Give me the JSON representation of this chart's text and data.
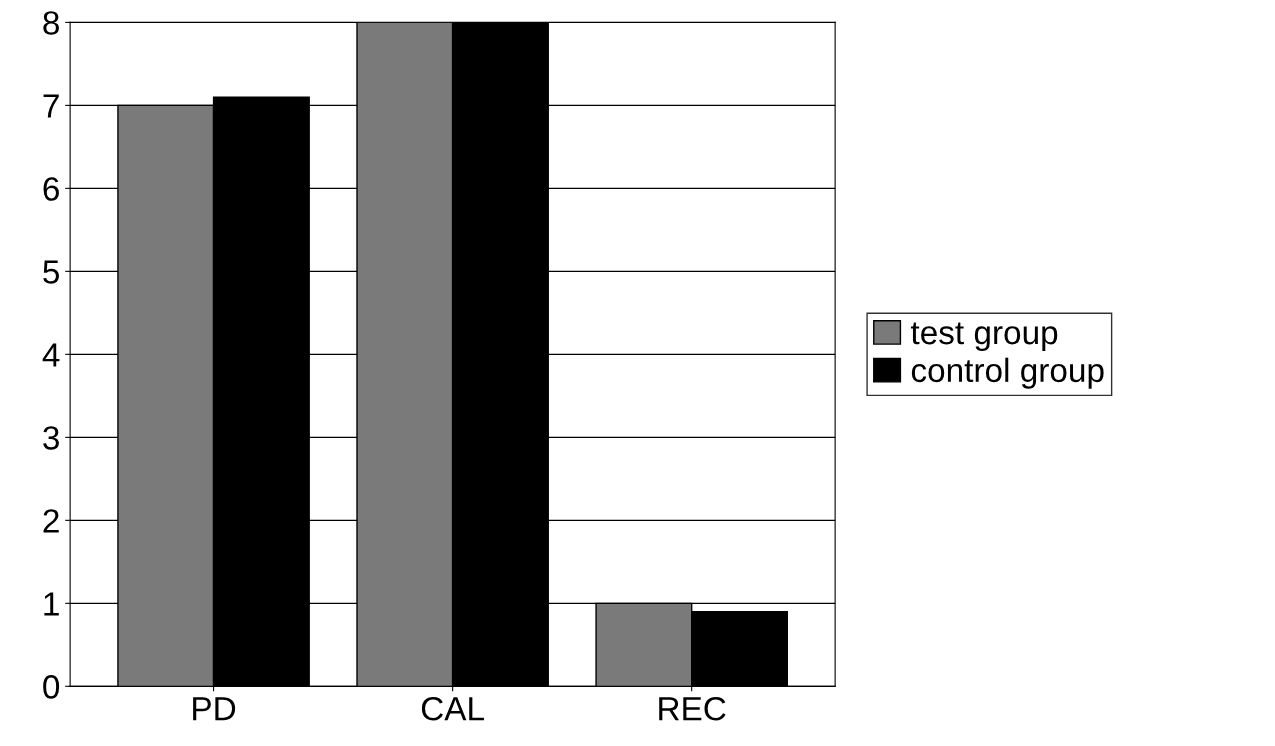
{
  "chart_data": {
    "type": "bar",
    "categories": [
      "PD",
      "CAL",
      "REC"
    ],
    "series": [
      {
        "name": "test group",
        "color": "#7a7a7a",
        "values": [
          7.0,
          8.0,
          1.0
        ]
      },
      {
        "name": "control group",
        "color": "#000000",
        "values": [
          7.1,
          8.0,
          0.9
        ]
      }
    ],
    "ylim": [
      0,
      8
    ],
    "yticks": [
      0,
      1,
      2,
      3,
      4,
      5,
      6,
      7,
      8
    ],
    "grid": "y",
    "legend": "right"
  }
}
